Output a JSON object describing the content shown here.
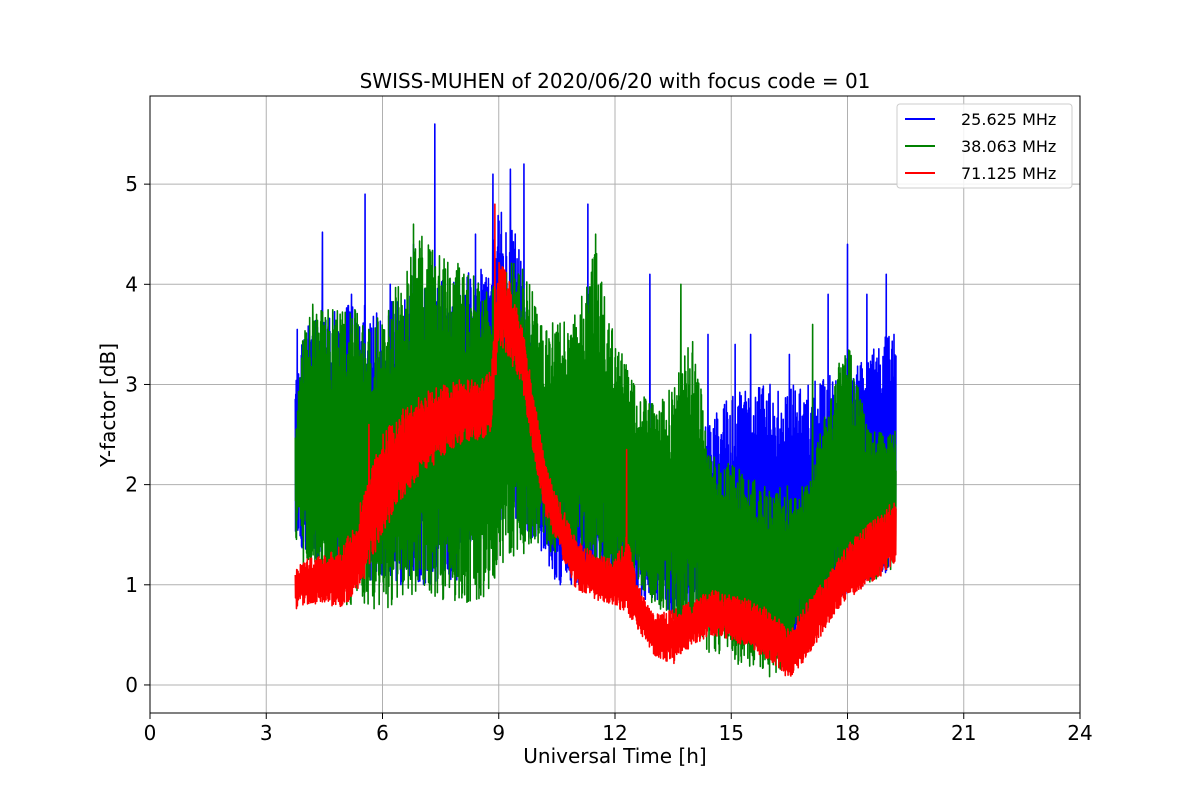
{
  "chart_data": {
    "type": "line",
    "title": "SWISS-MUHEN of 2020/06/20 with focus code = 01",
    "xlabel": "Universal Time [h]",
    "ylabel": "Y-factor [dB]",
    "xlim": [
      0,
      24
    ],
    "ylim": [
      -0.28,
      5.88
    ],
    "xticks": [
      0,
      3,
      6,
      9,
      12,
      15,
      18,
      21,
      24
    ],
    "yticks": [
      0,
      1,
      2,
      3,
      4,
      5
    ],
    "grid": true,
    "legend_position": "top-right",
    "series": [
      {
        "name": "25.625 MHz",
        "color": "#0000ff",
        "style": "dense noisy band",
        "x": [
          3.75,
          4.0,
          5.0,
          6.0,
          7.0,
          8.0,
          8.8,
          9.0,
          9.5,
          10.0,
          10.5,
          11.0,
          11.5,
          12.0,
          12.5,
          13.0,
          13.5,
          14.0,
          14.5,
          15.0,
          15.5,
          16.0,
          16.5,
          17.0,
          17.5,
          18.0,
          18.5,
          19.0,
          19.25
        ],
        "low": [
          1.5,
          1.3,
          1.0,
          1.0,
          1.0,
          1.0,
          1.6,
          1.6,
          1.5,
          1.4,
          1.0,
          1.0,
          1.0,
          1.0,
          0.9,
          0.8,
          0.7,
          0.6,
          0.5,
          0.5,
          0.4,
          0.3,
          0.2,
          0.4,
          0.8,
          0.9,
          1.0,
          1.1,
          1.2
        ],
        "high": [
          3.0,
          3.6,
          3.8,
          3.8,
          4.0,
          4.1,
          4.3,
          4.8,
          4.5,
          3.0,
          2.6,
          2.6,
          2.6,
          2.7,
          2.5,
          2.2,
          2.0,
          2.4,
          2.7,
          2.9,
          3.0,
          3.0,
          3.0,
          3.0,
          3.1,
          3.1,
          3.3,
          3.5,
          3.5
        ],
        "peaks": [
          [
            3.8,
            3.55
          ],
          [
            4.45,
            4.52
          ],
          [
            5.2,
            3.9
          ],
          [
            5.55,
            4.9
          ],
          [
            6.2,
            4.0
          ],
          [
            6.8,
            4.4
          ],
          [
            7.35,
            5.6
          ],
          [
            8.4,
            4.5
          ],
          [
            8.85,
            5.1
          ],
          [
            9.3,
            5.15
          ],
          [
            9.65,
            5.2
          ],
          [
            11.3,
            4.8
          ],
          [
            12.9,
            4.1
          ],
          [
            14.4,
            3.5
          ],
          [
            15.1,
            3.4
          ],
          [
            15.5,
            3.5
          ],
          [
            16.0,
            3.0
          ],
          [
            16.5,
            3.3
          ],
          [
            17.5,
            3.9
          ],
          [
            18.0,
            4.4
          ],
          [
            18.5,
            3.9
          ],
          [
            19.0,
            4.1
          ],
          [
            19.2,
            3.5
          ]
        ]
      },
      {
        "name": "38.063 MHz",
        "color": "#008000",
        "style": "dense noisy band",
        "x": [
          3.75,
          4.0,
          5.0,
          6.0,
          7.0,
          8.0,
          8.8,
          9.0,
          9.5,
          10.0,
          10.5,
          11.0,
          11.5,
          12.0,
          12.5,
          13.0,
          13.5,
          14.0,
          14.5,
          15.0,
          15.5,
          16.0,
          16.5,
          17.0,
          17.5,
          18.0,
          18.5,
          19.0,
          19.25
        ],
        "low": [
          1.45,
          1.1,
          0.8,
          0.75,
          0.9,
          0.8,
          0.9,
          1.2,
          1.2,
          1.4,
          1.3,
          1.2,
          1.1,
          1.0,
          0.9,
          0.8,
          0.6,
          0.4,
          0.3,
          0.25,
          0.1,
          0.05,
          0.2,
          0.5,
          0.8,
          0.9,
          1.0,
          1.1,
          1.2
        ],
        "high": [
          2.6,
          3.7,
          3.8,
          3.7,
          4.5,
          4.2,
          4.0,
          4.1,
          4.3,
          3.8,
          3.6,
          3.7,
          4.4,
          3.5,
          3.0,
          2.8,
          3.0,
          3.5,
          2.3,
          2.2,
          2.1,
          2.0,
          2.0,
          2.0,
          2.9,
          3.5,
          2.6,
          2.5,
          2.6
        ],
        "peaks": [
          [
            4.2,
            3.8
          ],
          [
            6.8,
            4.6
          ],
          [
            8.1,
            4.1
          ],
          [
            11.5,
            4.5
          ],
          [
            13.7,
            4.0
          ],
          [
            17.1,
            3.6
          ]
        ]
      },
      {
        "name": "71.125 MHz",
        "color": "#ff0000",
        "style": "dense noisy band",
        "x": [
          3.75,
          4.0,
          4.5,
          5.0,
          5.5,
          6.0,
          6.5,
          7.0,
          7.5,
          8.0,
          8.5,
          8.8,
          9.0,
          9.3,
          9.6,
          9.9,
          10.2,
          10.5,
          11.0,
          11.5,
          12.0,
          12.3,
          12.6,
          13.0,
          13.5,
          14.0,
          14.5,
          15.0,
          15.5,
          16.0,
          16.5,
          17.0,
          17.5,
          18.0,
          18.5,
          19.0,
          19.25
        ],
        "low": [
          0.75,
          0.8,
          0.8,
          0.75,
          1.0,
          1.5,
          1.85,
          2.1,
          2.25,
          2.4,
          2.45,
          2.5,
          3.4,
          3.2,
          3.0,
          2.3,
          1.7,
          1.4,
          0.95,
          0.85,
          0.8,
          0.7,
          0.55,
          0.3,
          0.2,
          0.4,
          0.5,
          0.45,
          0.35,
          0.25,
          0.05,
          0.3,
          0.6,
          0.85,
          1.0,
          1.1,
          1.25
        ],
        "high": [
          1.15,
          1.25,
          1.3,
          1.4,
          1.9,
          2.5,
          2.75,
          2.9,
          3.0,
          3.05,
          3.05,
          3.15,
          4.3,
          4.0,
          3.6,
          2.9,
          2.2,
          1.9,
          1.45,
          1.3,
          1.25,
          1.5,
          1.0,
          0.7,
          0.75,
          0.85,
          0.95,
          0.9,
          0.85,
          0.75,
          0.55,
          0.85,
          1.1,
          1.4,
          1.6,
          1.75,
          1.9
        ],
        "peaks": [
          [
            5.65,
            2.6
          ],
          [
            8.9,
            4.8
          ],
          [
            12.3,
            2.35
          ]
        ]
      }
    ]
  }
}
